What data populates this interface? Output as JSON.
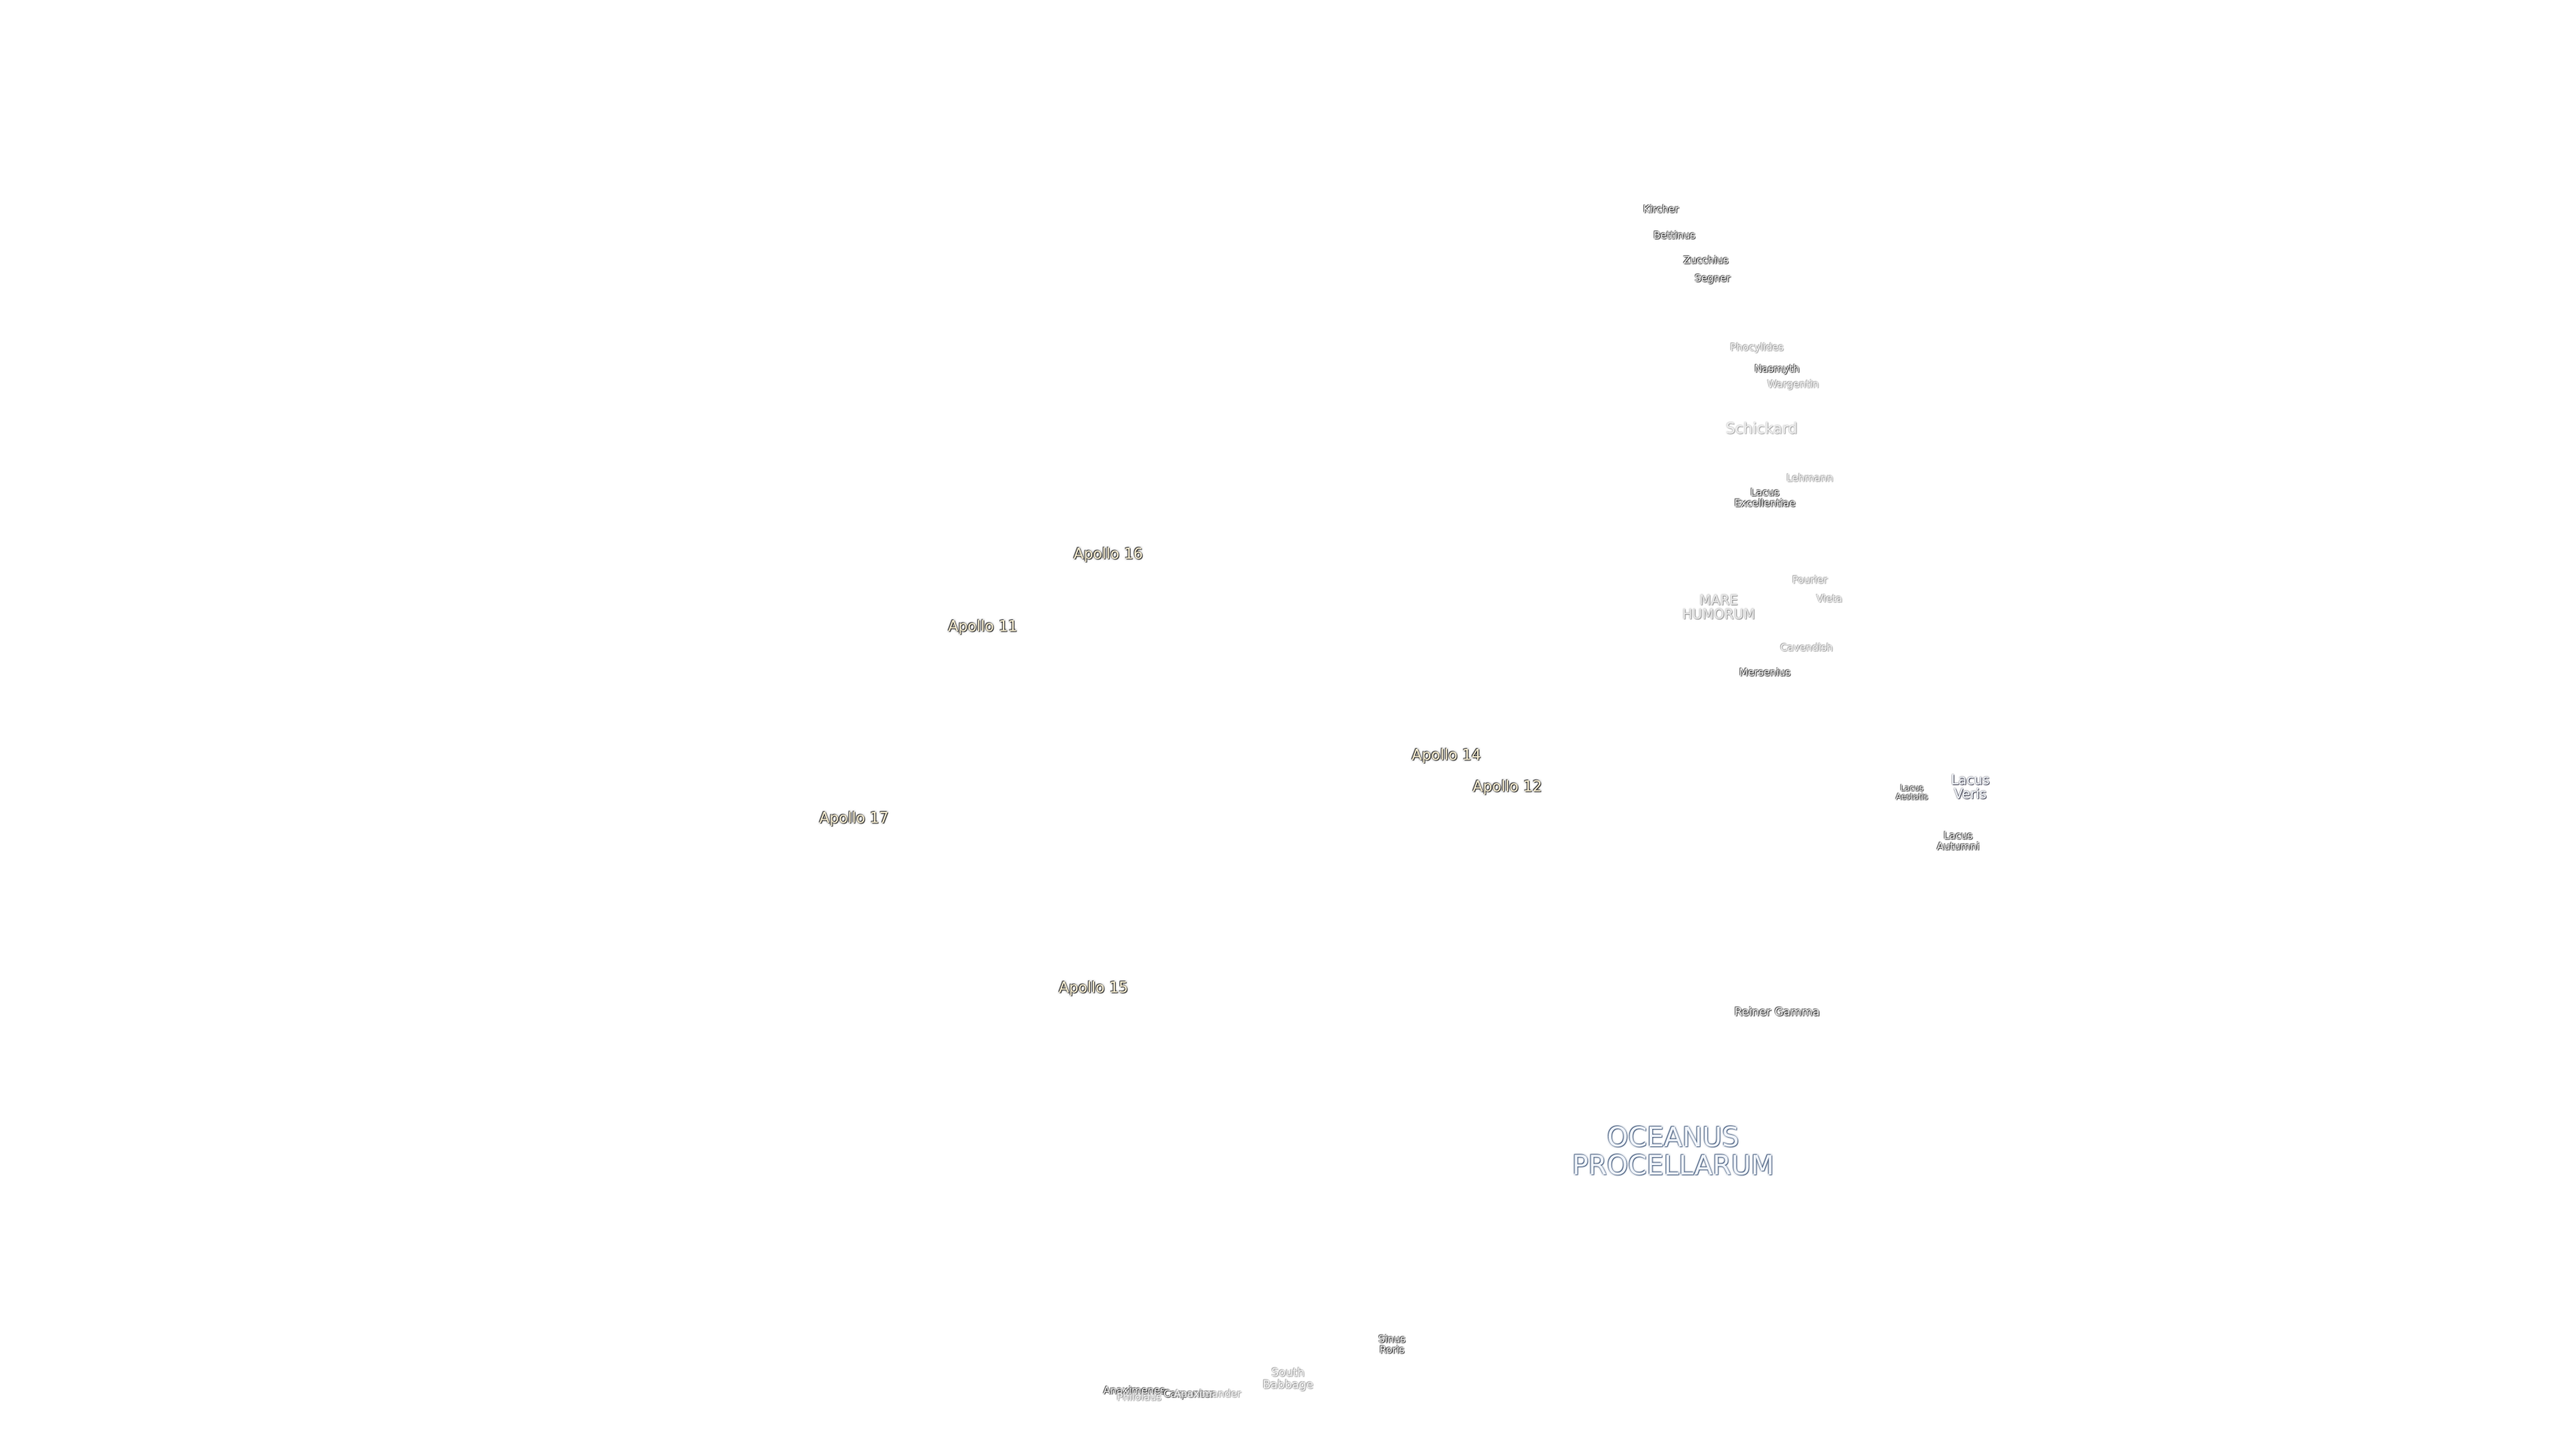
{
  "labels": [
    {
      "lines": [
        "Kircher"
      ]
    },
    {
      "lines": [
        "Bettinus"
      ]
    },
    {
      "lines": [
        "Zucchius"
      ]
    },
    {
      "lines": [
        "Segner"
      ]
    },
    {
      "lines": [
        "Phocylides"
      ]
    },
    {
      "lines": [
        "Nasmyth"
      ]
    },
    {
      "lines": [
        "Wargentin"
      ]
    },
    {
      "lines": [
        "Schickard"
      ]
    },
    {
      "lines": [
        "Lehmann"
      ]
    },
    {
      "lines": [
        "Lacus",
        "Excellentiae"
      ]
    },
    {
      "lines": [
        "Apollo 16"
      ]
    },
    {
      "lines": [
        "Apollo 11"
      ]
    },
    {
      "lines": [
        "Fourier"
      ]
    },
    {
      "lines": [
        "Vieta"
      ]
    },
    {
      "lines": [
        "MARE",
        "HUMORUM"
      ]
    },
    {
      "lines": [
        "Cavendish"
      ]
    },
    {
      "lines": [
        "Mersenius"
      ]
    },
    {
      "lines": [
        "Apollo 14"
      ]
    },
    {
      "lines": [
        "Apollo 12"
      ]
    },
    {
      "lines": [
        "Lacus",
        "Aestatis"
      ]
    },
    {
      "lines": [
        "Lacus",
        "Veris"
      ]
    },
    {
      "lines": [
        "Apollo 17"
      ]
    },
    {
      "lines": [
        "Lacus",
        "Autumni"
      ]
    },
    {
      "lines": [
        "Apollo 15"
      ]
    },
    {
      "lines": [
        "Reiner Gamma"
      ]
    },
    {
      "lines": [
        "OCEANUS",
        "PROCELLARUM"
      ]
    },
    {
      "lines": [
        "Sinus",
        "Roris"
      ]
    },
    {
      "lines": [
        "South",
        "Babbage"
      ]
    },
    {
      "lines": [
        "Anaximenes"
      ]
    },
    {
      "lines": [
        "Philolaus"
      ]
    },
    {
      "lines": [
        "Carpenter"
      ]
    },
    {
      "lines": [
        "Anaximander"
      ]
    }
  ]
}
